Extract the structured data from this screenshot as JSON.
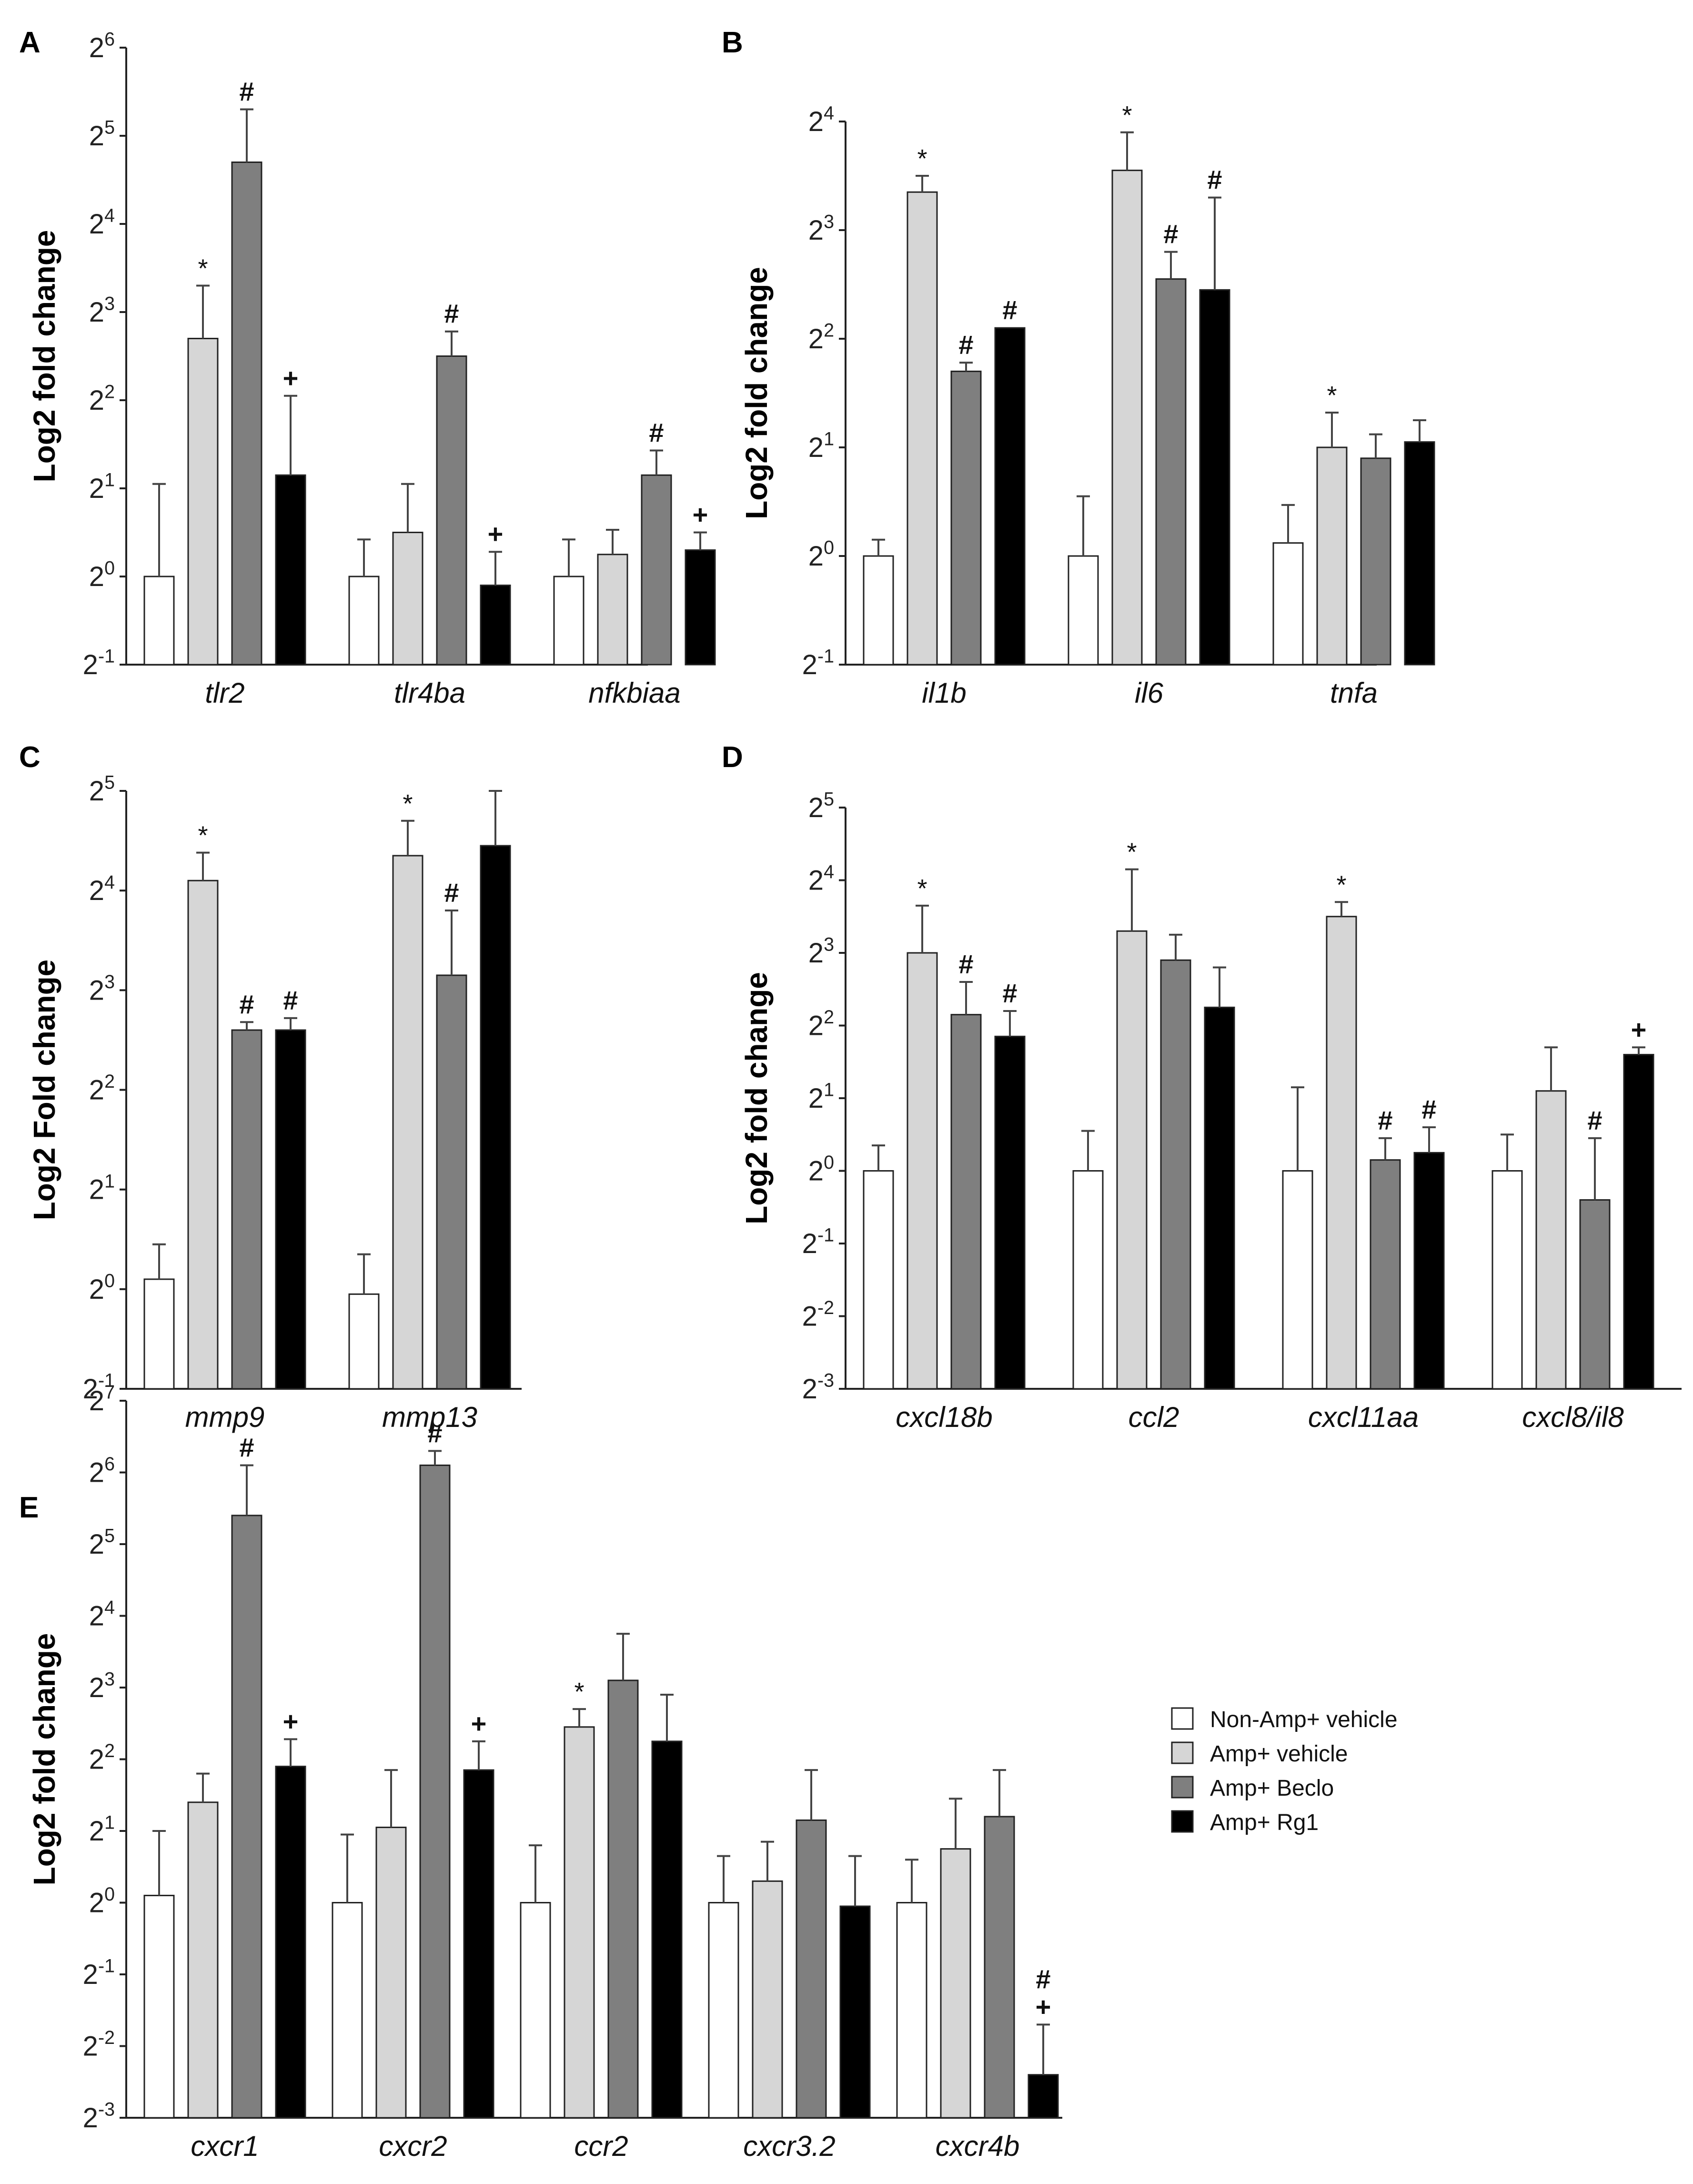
{
  "legend": {
    "items": [
      {
        "label": "Non-Amp+ vehicle",
        "color": "#ffffff"
      },
      {
        "label": "Amp+ vehicle",
        "color": "#d6d6d6"
      },
      {
        "label": "Amp+ Beclo",
        "color": "#7f7f7f"
      },
      {
        "label": "Amp+ Rg1",
        "color": "#000000"
      }
    ]
  },
  "chart_data": [
    {
      "type": "bar",
      "panel": "A",
      "ylabel": "Log2 fold change",
      "ylim_exp": [
        -1,
        6
      ],
      "y_ticks_exp": [
        -1,
        0,
        1,
        2,
        3,
        4,
        5,
        6
      ],
      "categories": [
        "tlr2",
        "tlr4ba",
        "nfkbiaa"
      ],
      "series": [
        {
          "name": "Non-Amp+ vehicle",
          "values": [
            0,
            0,
            0
          ],
          "err": [
            1.05,
            0.42,
            0.42
          ],
          "sig": [
            "",
            "",
            ""
          ]
        },
        {
          "name": "Amp+ vehicle",
          "values": [
            2.7,
            0.5,
            0.25
          ],
          "err": [
            0.6,
            0.55,
            0.28
          ],
          "sig": [
            "*",
            "",
            ""
          ]
        },
        {
          "name": "Amp+ Beclo",
          "values": [
            4.7,
            2.5,
            1.15
          ],
          "err": [
            0.6,
            0.28,
            0.28
          ],
          "sig": [
            "#",
            "#",
            "#"
          ]
        },
        {
          "name": "Amp+ Rg1",
          "values": [
            1.15,
            -0.1,
            0.3
          ],
          "err": [
            0.9,
            0.38,
            0.2
          ],
          "sig": [
            "+",
            "+",
            "+"
          ]
        }
      ]
    },
    {
      "type": "bar",
      "panel": "B",
      "ylabel": "Log2 fold change",
      "ylim_exp": [
        -1,
        4
      ],
      "y_ticks_exp": [
        -1,
        0,
        1,
        2,
        3,
        4
      ],
      "categories": [
        "il1b",
        "il6",
        "tnfa"
      ],
      "series": [
        {
          "name": "Non-Amp+ vehicle",
          "values": [
            0,
            0,
            0.12
          ],
          "err": [
            0.15,
            0.55,
            0.35
          ],
          "sig": [
            "",
            "",
            ""
          ]
        },
        {
          "name": "Amp+ vehicle",
          "values": [
            3.35,
            3.55,
            1.0
          ],
          "err": [
            0.15,
            0.35,
            0.32
          ],
          "sig": [
            "*",
            "*",
            "*"
          ]
        },
        {
          "name": "Amp+ Beclo",
          "values": [
            1.7,
            2.55,
            0.9
          ],
          "err": [
            0.08,
            0.25,
            0.22
          ],
          "sig": [
            "#",
            "#",
            ""
          ]
        },
        {
          "name": "Amp+ Rg1",
          "values": [
            2.1,
            2.45,
            1.05
          ],
          "err": [
            0.0,
            0.85,
            0.2
          ],
          "sig": [
            "#",
            "#",
            ""
          ]
        }
      ]
    },
    {
      "type": "bar",
      "panel": "C",
      "ylabel": "Log2 Fold change",
      "ylim_exp": [
        -1,
        5
      ],
      "y_ticks_exp": [
        -1,
        0,
        1,
        2,
        3,
        4,
        5
      ],
      "categories": [
        "mmp9",
        "mmp13"
      ],
      "series": [
        {
          "name": "Non-Amp+ vehicle",
          "values": [
            0.1,
            -0.05
          ],
          "err": [
            0.35,
            0.4
          ],
          "sig": [
            "",
            ""
          ]
        },
        {
          "name": "Amp+ vehicle",
          "values": [
            4.1,
            4.35
          ],
          "err": [
            0.28,
            0.35
          ],
          "sig": [
            "*",
            "*"
          ]
        },
        {
          "name": "Amp+ Beclo",
          "values": [
            2.6,
            3.15
          ],
          "err": [
            0.08,
            0.65
          ],
          "sig": [
            "#",
            "#"
          ]
        },
        {
          "name": "Amp+ Rg1",
          "values": [
            2.6,
            4.45
          ],
          "err": [
            0.12,
            0.55
          ],
          "sig": [
            "#",
            ""
          ]
        }
      ]
    },
    {
      "type": "bar",
      "panel": "D",
      "ylabel": "Log2 fold change",
      "ylim_exp": [
        -3,
        5
      ],
      "y_ticks_exp": [
        -3,
        -2,
        -1,
        0,
        1,
        2,
        3,
        4,
        5
      ],
      "categories": [
        "cxcl18b",
        "ccl2",
        "cxcl11aa",
        "cxcl8/il8"
      ],
      "series": [
        {
          "name": "Non-Amp+ vehicle",
          "values": [
            0,
            0,
            0,
            0
          ],
          "err": [
            0.35,
            0.55,
            1.15,
            0.5
          ],
          "sig": [
            "",
            "",
            "",
            ""
          ]
        },
        {
          "name": "Amp+ vehicle",
          "values": [
            3.0,
            3.3,
            3.5,
            1.1
          ],
          "err": [
            0.65,
            0.85,
            0.2,
            0.6
          ],
          "sig": [
            "*",
            "*",
            "*",
            ""
          ]
        },
        {
          "name": "Amp+ Beclo",
          "values": [
            2.15,
            2.9,
            0.15,
            -0.4
          ],
          "err": [
            0.45,
            0.35,
            0.3,
            0.85
          ],
          "sig": [
            "#",
            "",
            "#",
            "#"
          ]
        },
        {
          "name": "Amp+ Rg1",
          "values": [
            1.85,
            2.25,
            0.25,
            1.6
          ],
          "err": [
            0.35,
            0.55,
            0.35,
            0.1
          ],
          "sig": [
            "#",
            "",
            "#",
            "+"
          ]
        }
      ]
    },
    {
      "type": "bar",
      "panel": "E",
      "ylabel": "Log2 fold change",
      "ylim_exp": [
        -3,
        7
      ],
      "y_ticks_exp": [
        -3,
        -2,
        -1,
        0,
        1,
        2,
        3,
        4,
        5,
        6,
        7
      ],
      "categories": [
        "cxcr1",
        "cxcr2",
        "ccr2",
        "cxcr3.2",
        "cxcr4b"
      ],
      "series": [
        {
          "name": "Non-Amp+ vehicle",
          "values": [
            0.1,
            0,
            0,
            0,
            0
          ],
          "err": [
            0.9,
            0.95,
            0.8,
            0.65,
            0.6
          ],
          "sig": [
            "",
            "",
            "",
            "",
            ""
          ]
        },
        {
          "name": "Amp+ vehicle",
          "values": [
            1.4,
            1.05,
            2.45,
            0.3,
            0.75
          ],
          "err": [
            0.4,
            0.8,
            0.25,
            0.55,
            0.7
          ],
          "sig": [
            "",
            "",
            "*",
            "",
            ""
          ]
        },
        {
          "name": "Amp+ Beclo",
          "values": [
            5.4,
            6.1,
            3.1,
            1.15,
            1.2
          ],
          "err": [
            0.7,
            0.2,
            0.65,
            0.7,
            0.65
          ],
          "sig": [
            "#",
            "#",
            "",
            "",
            ""
          ]
        },
        {
          "name": "Amp+ Rg1",
          "values": [
            1.9,
            1.85,
            2.25,
            -0.05,
            -2.4
          ],
          "err": [
            0.38,
            0.4,
            0.65,
            0.7,
            0.7
          ],
          "sig": [
            "+",
            "+",
            "",
            "",
            "#+"
          ]
        }
      ]
    }
  ]
}
